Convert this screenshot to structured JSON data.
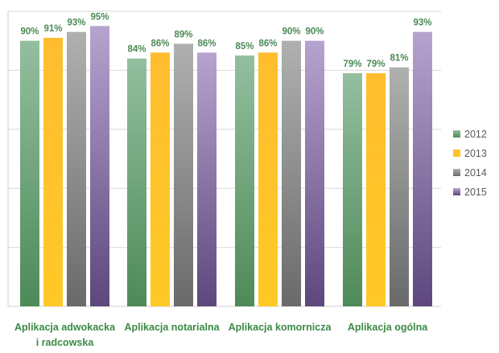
{
  "chart_data": {
    "type": "bar",
    "title": "",
    "xlabel": "",
    "ylabel": "",
    "ylim": [
      0,
      100
    ],
    "grid": true,
    "legend_position": "right",
    "categories": [
      [
        "Aplikacja adwokacka",
        "i radcowska"
      ],
      [
        "Aplikacja notarialna"
      ],
      [
        "Aplikacja komornicza"
      ],
      [
        "Aplikacja ogólna"
      ]
    ],
    "series": [
      {
        "name": "2012",
        "values": [
          90,
          84,
          85,
          79
        ],
        "labels": [
          "90%",
          "84%",
          "85%",
          "79%"
        ]
      },
      {
        "name": "2013",
        "values": [
          91,
          86,
          86,
          79
        ],
        "labels": [
          "91%",
          "86%",
          "86%",
          "79%"
        ]
      },
      {
        "name": "2014",
        "values": [
          93,
          89,
          90,
          81
        ],
        "labels": [
          "93%",
          "89%",
          "90%",
          "81%"
        ]
      },
      {
        "name": "2015",
        "values": [
          95,
          86,
          90,
          93
        ],
        "labels": [
          "95%",
          "86%",
          "90%",
          "93%"
        ]
      }
    ],
    "colors": {
      "2012": {
        "top": "#93bf9f",
        "bottom": "#4e8a58"
      },
      "2013": {
        "top": "#ffbd2e",
        "bottom": "#ffc926"
      },
      "2014": {
        "top": "#b0b0b0",
        "bottom": "#6a6a6a"
      },
      "2015": {
        "top": "#b7a3cf",
        "bottom": "#5d477d"
      }
    },
    "label_color": "#4a8a54",
    "category_label_color": "#3a8a45"
  }
}
